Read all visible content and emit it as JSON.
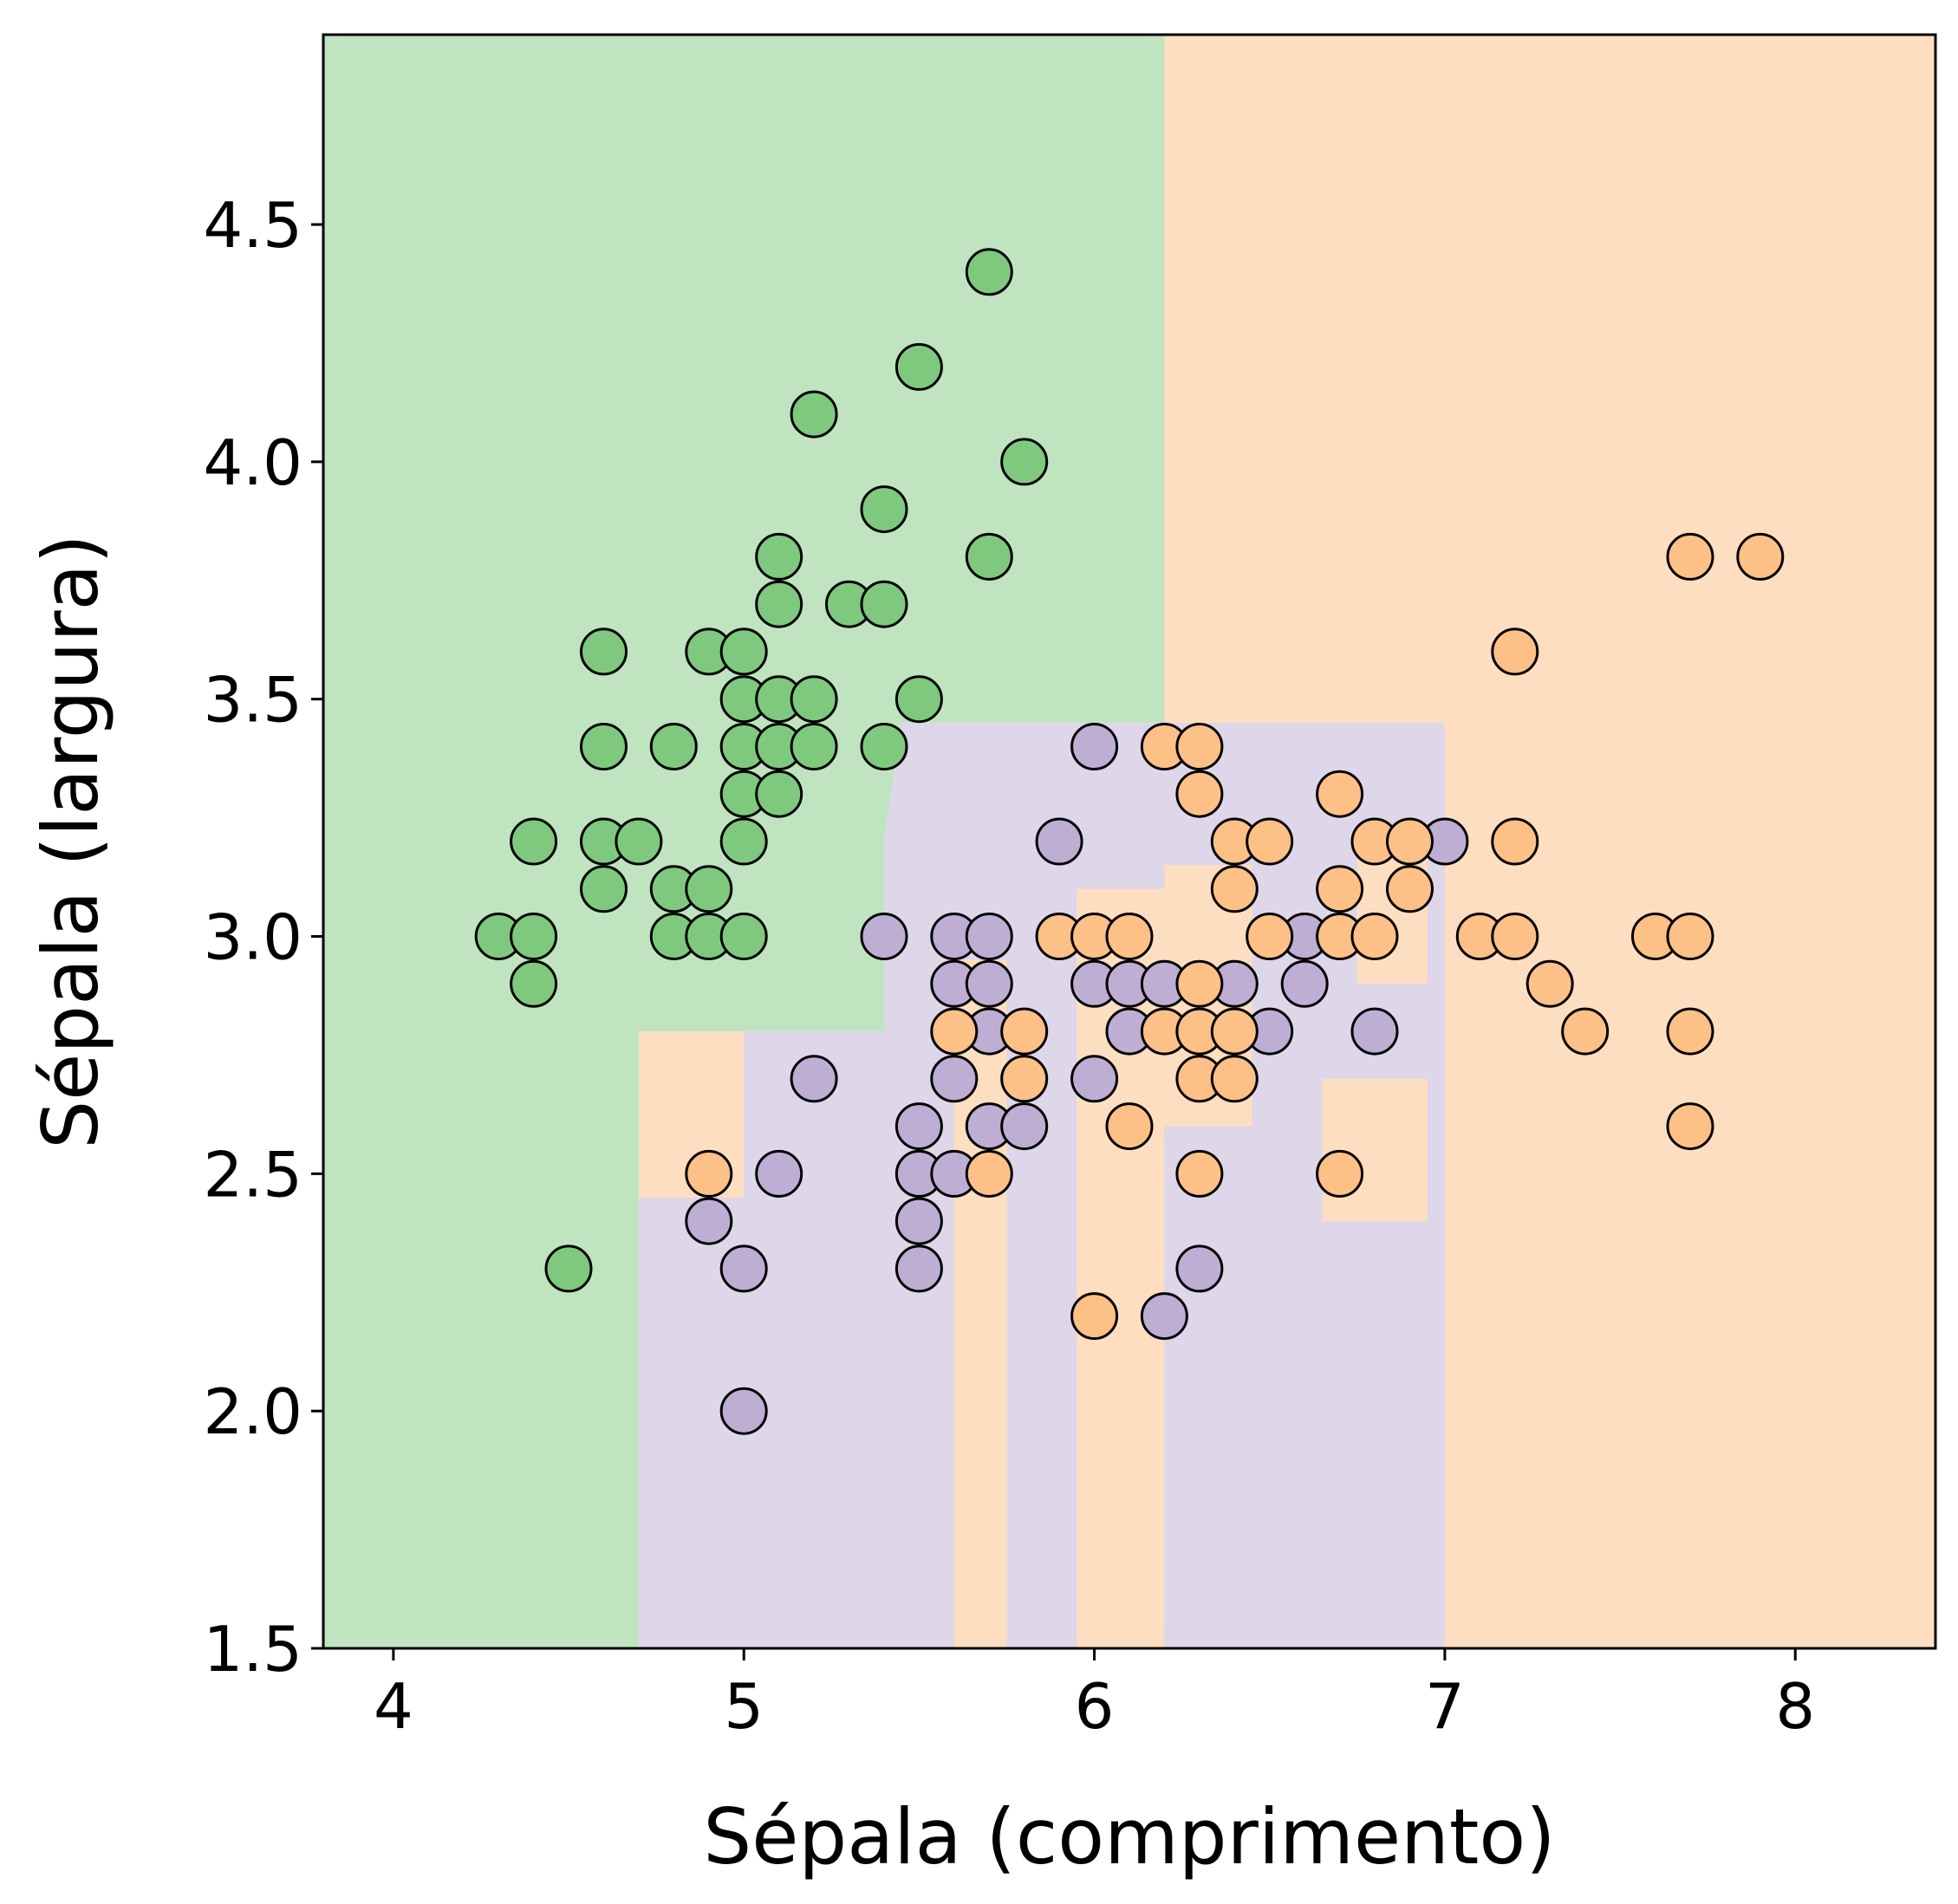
{
  "chart_data": {
    "type": "scatter",
    "title": "",
    "xlabel": "Sépala (comprimento)",
    "ylabel": "Sépala (largura)",
    "xlim": [
      3.8,
      8.4
    ],
    "ylim": [
      1.5,
      4.9
    ],
    "xticks": [
      "4",
      "5",
      "6",
      "7",
      "8"
    ],
    "yticks": [
      "1.5",
      "2.0",
      "2.5",
      "3.0",
      "3.5",
      "4.0",
      "4.5"
    ],
    "grid": false,
    "legend": "none",
    "colors": {
      "green_point": "#7fc97f",
      "purple_point": "#beaed4",
      "orange_point": "#fdc086",
      "green_region": "#c0e4c0",
      "purple_region": "#ded6e9",
      "orange_region": "#fedec0",
      "edge": "#000000"
    },
    "decision_regions": [
      {
        "class": "green",
        "polygon": [
          [
            3.8,
            1.5
          ],
          [
            4.7,
            1.5
          ],
          [
            4.7,
            2.8
          ],
          [
            5.4,
            2.8
          ],
          [
            5.4,
            3.2
          ],
          [
            5.45,
            3.45
          ],
          [
            6.2,
            3.45
          ],
          [
            6.2,
            4.9
          ],
          [
            3.8,
            4.9
          ]
        ]
      },
      {
        "class": "purple",
        "polygon": [
          [
            4.7,
            1.5
          ],
          [
            7.0,
            1.5
          ],
          [
            7.0,
            4.9
          ],
          [
            6.2,
            4.9
          ],
          [
            6.2,
            3.45
          ],
          [
            5.45,
            3.45
          ],
          [
            5.4,
            3.2
          ],
          [
            5.4,
            2.8
          ],
          [
            4.7,
            2.8
          ]
        ]
      },
      {
        "class": "orange",
        "polygon": [
          [
            7.0,
            1.5
          ],
          [
            8.4,
            1.5
          ],
          [
            8.4,
            4.9
          ],
          [
            6.2,
            4.9
          ],
          [
            6.2,
            3.45
          ],
          [
            7.0,
            3.45
          ]
        ]
      },
      {
        "class": "orange",
        "polygon": [
          [
            4.7,
            2.45
          ],
          [
            5.0,
            2.45
          ],
          [
            5.0,
            2.8
          ],
          [
            4.7,
            2.8
          ]
        ]
      },
      {
        "class": "orange",
        "polygon": [
          [
            5.6,
            1.5
          ],
          [
            5.75,
            1.5
          ],
          [
            5.75,
            2.95
          ],
          [
            5.6,
            2.95
          ]
        ]
      },
      {
        "class": "orange",
        "polygon": [
          [
            5.95,
            1.5
          ],
          [
            6.2,
            1.5
          ],
          [
            6.2,
            3.1
          ],
          [
            5.95,
            3.1
          ]
        ]
      },
      {
        "class": "orange",
        "polygon": [
          [
            6.2,
            2.6
          ],
          [
            6.45,
            2.6
          ],
          [
            6.45,
            3.15
          ],
          [
            6.2,
            3.15
          ]
        ]
      },
      {
        "class": "orange",
        "polygon": [
          [
            6.65,
            2.4
          ],
          [
            6.95,
            2.4
          ],
          [
            6.95,
            2.7
          ],
          [
            6.65,
            2.7
          ]
        ]
      },
      {
        "class": "orange",
        "polygon": [
          [
            6.75,
            2.9
          ],
          [
            6.95,
            2.9
          ],
          [
            6.95,
            3.2
          ],
          [
            6.75,
            3.2
          ]
        ]
      }
    ],
    "series": [
      {
        "color_key": "green_point",
        "x": [
          5.7,
          5.5,
          5.2,
          5.8,
          5.4,
          5.1,
          5.7,
          5.1,
          5.3,
          5.4,
          4.6,
          4.9,
          5.0,
          5.0,
          5.1,
          5.2,
          5.5,
          4.6,
          4.8,
          5.0,
          5.1,
          5.2,
          5.4,
          5.0,
          5.1,
          4.4,
          4.6,
          4.7,
          5.0,
          4.6,
          4.8,
          4.9,
          4.3,
          4.4,
          4.8,
          4.9,
          5.0,
          4.4,
          4.5
        ],
        "y": [
          4.4,
          4.2,
          4.1,
          4.0,
          3.9,
          3.8,
          3.8,
          3.7,
          3.7,
          3.7,
          3.6,
          3.6,
          3.6,
          3.5,
          3.5,
          3.5,
          3.5,
          3.4,
          3.4,
          3.4,
          3.4,
          3.4,
          3.4,
          3.3,
          3.3,
          3.2,
          3.2,
          3.2,
          3.2,
          3.1,
          3.1,
          3.1,
          3.0,
          3.0,
          3.0,
          3.0,
          3.0,
          2.9,
          2.3
        ]
      },
      {
        "color_key": "purple_point",
        "x": [
          6.0,
          5.9,
          7.0,
          6.6,
          5.4,
          5.6,
          5.7,
          5.6,
          5.7,
          6.0,
          6.1,
          6.2,
          6.4,
          6.6,
          5.7,
          6.1,
          6.5,
          6.8,
          5.6,
          5.2,
          6.0,
          5.5,
          5.7,
          5.8,
          5.5,
          5.1,
          5.5,
          5.6,
          4.9,
          5.5,
          5.0,
          5.5,
          6.3,
          5.0,
          6.2
        ],
        "y": [
          3.4,
          3.2,
          3.2,
          3.0,
          3.0,
          3.0,
          3.0,
          2.9,
          2.9,
          2.9,
          2.9,
          2.9,
          2.9,
          2.9,
          2.8,
          2.8,
          2.8,
          2.8,
          2.7,
          2.7,
          2.7,
          2.6,
          2.6,
          2.6,
          2.5,
          2.5,
          2.5,
          2.5,
          2.4,
          2.4,
          2.3,
          2.3,
          2.3,
          2.0,
          2.2
        ]
      },
      {
        "color_key": "orange_point",
        "x": [
          7.7,
          7.9,
          7.2,
          6.2,
          6.3,
          6.3,
          6.7,
          6.4,
          6.5,
          6.8,
          6.9,
          7.2,
          6.4,
          6.7,
          6.9,
          5.9,
          6.0,
          6.1,
          6.5,
          6.7,
          6.8,
          7.1,
          7.2,
          7.6,
          7.7,
          6.3,
          7.3,
          5.6,
          5.8,
          6.2,
          6.3,
          6.4,
          7.4,
          7.7,
          5.8,
          6.3,
          6.4,
          6.1,
          7.7,
          4.9,
          5.7,
          6.3,
          6.7,
          6.0
        ],
        "y": [
          3.8,
          3.8,
          3.6,
          3.4,
          3.4,
          3.3,
          3.3,
          3.2,
          3.2,
          3.2,
          3.2,
          3.2,
          3.1,
          3.1,
          3.1,
          3.0,
          3.0,
          3.0,
          3.0,
          3.0,
          3.0,
          3.0,
          3.0,
          3.0,
          3.0,
          2.9,
          2.9,
          2.8,
          2.8,
          2.8,
          2.8,
          2.8,
          2.8,
          2.8,
          2.7,
          2.7,
          2.7,
          2.6,
          2.6,
          2.5,
          2.5,
          2.5,
          2.5,
          2.2
        ]
      }
    ]
  }
}
